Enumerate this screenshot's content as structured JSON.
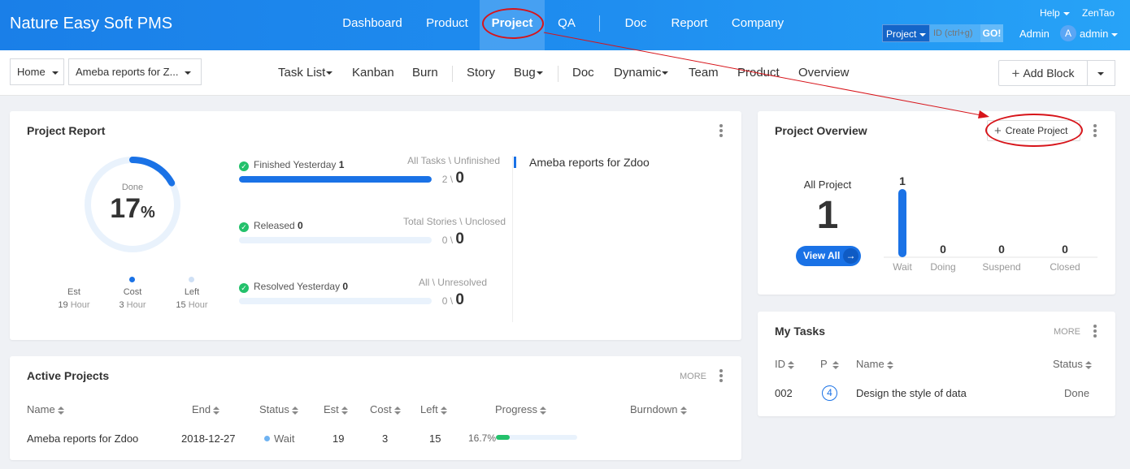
{
  "header": {
    "brand": "Nature Easy Soft PMS",
    "nav": [
      {
        "label": "Dashboard",
        "active": false
      },
      {
        "label": "Product",
        "active": false
      },
      {
        "label": "Project",
        "active": true
      },
      {
        "label": "QA",
        "active": false
      },
      {
        "label": "Doc",
        "active": false
      },
      {
        "label": "Report",
        "active": false
      },
      {
        "label": "Company",
        "active": false
      }
    ],
    "help_label": "Help",
    "zentao_label": "ZenTao",
    "search_type": "Project",
    "search_placeholder": "ID (ctrl+g)",
    "go_label": "GO!",
    "admin_label": "Admin",
    "avatar_letter": "A",
    "user_label": "admin"
  },
  "subbar": {
    "home_label": "Home",
    "project_label": "Ameba reports for Z...",
    "nav": [
      "Task List",
      "Kanban",
      "Burn",
      "Story",
      "Bug",
      "Doc",
      "Dynamic",
      "Team",
      "Product",
      "Overview"
    ],
    "add_block_label": "Add Block"
  },
  "project_report": {
    "title": "Project Report",
    "done_label": "Done",
    "done_percent": "17",
    "percent_sign": "%",
    "done_fraction": 0.17,
    "est_label": "Est",
    "est_value": "19",
    "est_unit": "Hour",
    "cost_label": "Cost",
    "cost_value": "3",
    "cost_unit": "Hour",
    "left_label": "Left",
    "left_value": "15",
    "left_unit": "Hour",
    "rows": [
      {
        "label": "Finished Yesterday",
        "count": "1",
        "right_label": "All Tasks \\ Unfinished",
        "total": "2",
        "value": "0",
        "fraction": 1.0
      },
      {
        "label": "Released",
        "count": "0",
        "right_label": "Total Stories \\ Unclosed",
        "total": "0",
        "value": "0",
        "fraction": 0
      },
      {
        "label": "Resolved Yesterday",
        "count": "0",
        "right_label": "All \\ Unresolved",
        "total": "0",
        "value": "0",
        "fraction": 0
      }
    ],
    "project_name": "Ameba reports for Zdoo"
  },
  "active_projects": {
    "title": "Active Projects",
    "more_label": "MORE",
    "columns": [
      "Name",
      "End",
      "Status",
      "Est",
      "Cost",
      "Left",
      "Progress",
      "Burndown"
    ],
    "rows": [
      {
        "name": "Ameba reports for Zdoo",
        "end": "2018-12-27",
        "status": "Wait",
        "est": "19",
        "cost": "3",
        "left": "15",
        "progress": "16.7%",
        "progress_fraction": 0.167
      }
    ]
  },
  "project_overview": {
    "title": "Project Overview",
    "create_label": "Create Project",
    "all_label": "All Project",
    "all_count": "1",
    "view_all_label": "View All",
    "chart_data": {
      "type": "bar",
      "categories": [
        "Wait",
        "Doing",
        "Suspend",
        "Closed"
      ],
      "values": [
        1,
        0,
        0,
        0
      ],
      "ylim": [
        0,
        1
      ]
    }
  },
  "my_tasks": {
    "title": "My Tasks",
    "more_label": "MORE",
    "columns": [
      "ID",
      "P",
      "Name",
      "Status"
    ],
    "rows": [
      {
        "id": "002",
        "priority": "4",
        "name": "Design the style of data",
        "status": "Done"
      }
    ]
  },
  "colors": {
    "primary": "#1a72e6",
    "success": "#23c16b",
    "annotation": "#d7141a"
  }
}
